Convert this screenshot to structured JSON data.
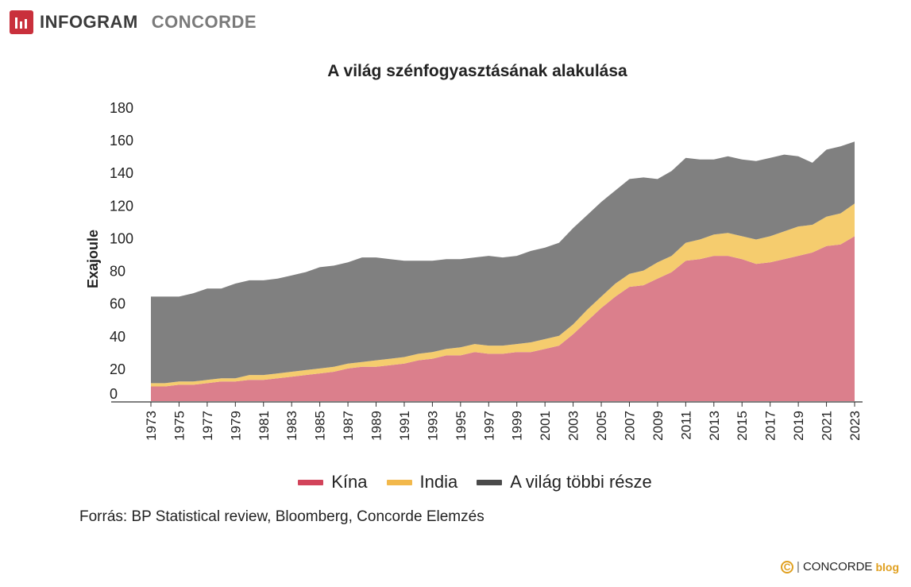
{
  "header": {
    "brand": "INFOGRAM",
    "partner": "CONCORDE",
    "logo_color": "#c9303c"
  },
  "chart_data": {
    "type": "area",
    "stacked": true,
    "title": "A világ szénfogyasztásának alakulása",
    "xlabel": "",
    "ylabel": "Exajoule",
    "ylim": [
      0,
      180
    ],
    "yticks": [
      0,
      20,
      40,
      60,
      80,
      100,
      120,
      140,
      160,
      180
    ],
    "grid": false,
    "legend_position": "bottom",
    "x": [
      1973,
      1974,
      1975,
      1976,
      1977,
      1978,
      1979,
      1980,
      1981,
      1982,
      1983,
      1984,
      1985,
      1986,
      1987,
      1988,
      1989,
      1990,
      1991,
      1992,
      1993,
      1994,
      1995,
      1996,
      1997,
      1998,
      1999,
      2000,
      2001,
      2002,
      2003,
      2004,
      2005,
      2006,
      2007,
      2008,
      2009,
      2010,
      2011,
      2012,
      2013,
      2014,
      2015,
      2016,
      2017,
      2018,
      2019,
      2020,
      2021,
      2022,
      2023
    ],
    "xtick_labels": [
      "1973",
      "1975",
      "1977",
      "1979",
      "1981",
      "1983",
      "1985",
      "1987",
      "1989",
      "1991",
      "1993",
      "1995",
      "1997",
      "1999",
      "2001",
      "2003",
      "2005",
      "2007",
      "2009",
      "2011",
      "2013",
      "2015",
      "2017",
      "2019",
      "2021",
      "2023"
    ],
    "series": [
      {
        "name": "Kína",
        "color": "#db7f8c",
        "legend_color": "#d2435a",
        "values": [
          9,
          9,
          10,
          10,
          11,
          12,
          12,
          13,
          13,
          14,
          15,
          16,
          17,
          18,
          20,
          21,
          21,
          22,
          23,
          25,
          26,
          28,
          28,
          30,
          29,
          29,
          30,
          30,
          32,
          34,
          41,
          49,
          57,
          64,
          70,
          71,
          75,
          79,
          86,
          87,
          89,
          89,
          87,
          84,
          85,
          87,
          89,
          91,
          95,
          96,
          101
        ]
      },
      {
        "name": "India",
        "color": "#f5cc6e",
        "legend_color": "#f2b84b",
        "values": [
          2,
          2,
          2,
          2,
          2,
          2,
          2,
          3,
          3,
          3,
          3,
          3,
          3,
          3,
          3,
          3,
          4,
          4,
          4,
          4,
          4,
          4,
          5,
          5,
          5,
          5,
          5,
          6,
          6,
          6,
          6,
          7,
          7,
          8,
          8,
          9,
          10,
          10,
          11,
          12,
          13,
          14,
          14,
          15,
          16,
          17,
          18,
          17,
          18,
          19,
          20
        ]
      },
      {
        "name": "A világ többi része",
        "color": "#808080",
        "legend_color": "#4a4a4a",
        "values": [
          53,
          53,
          52,
          54,
          56,
          55,
          58,
          58,
          58,
          58,
          59,
          60,
          62,
          62,
          62,
          64,
          63,
          61,
          59,
          57,
          56,
          55,
          54,
          53,
          55,
          54,
          54,
          56,
          56,
          57,
          59,
          58,
          58,
          57,
          58,
          57,
          51,
          52,
          52,
          49,
          46,
          47,
          47,
          48,
          48,
          47,
          43,
          38,
          41,
          41,
          38
        ]
      }
    ]
  },
  "source": "Forrás: BP Statistical review, Bloomberg, Concorde Elemzés",
  "footer": {
    "mark": "C",
    "separator": "|",
    "brand": "CONCORDE",
    "suffix": "blog"
  }
}
